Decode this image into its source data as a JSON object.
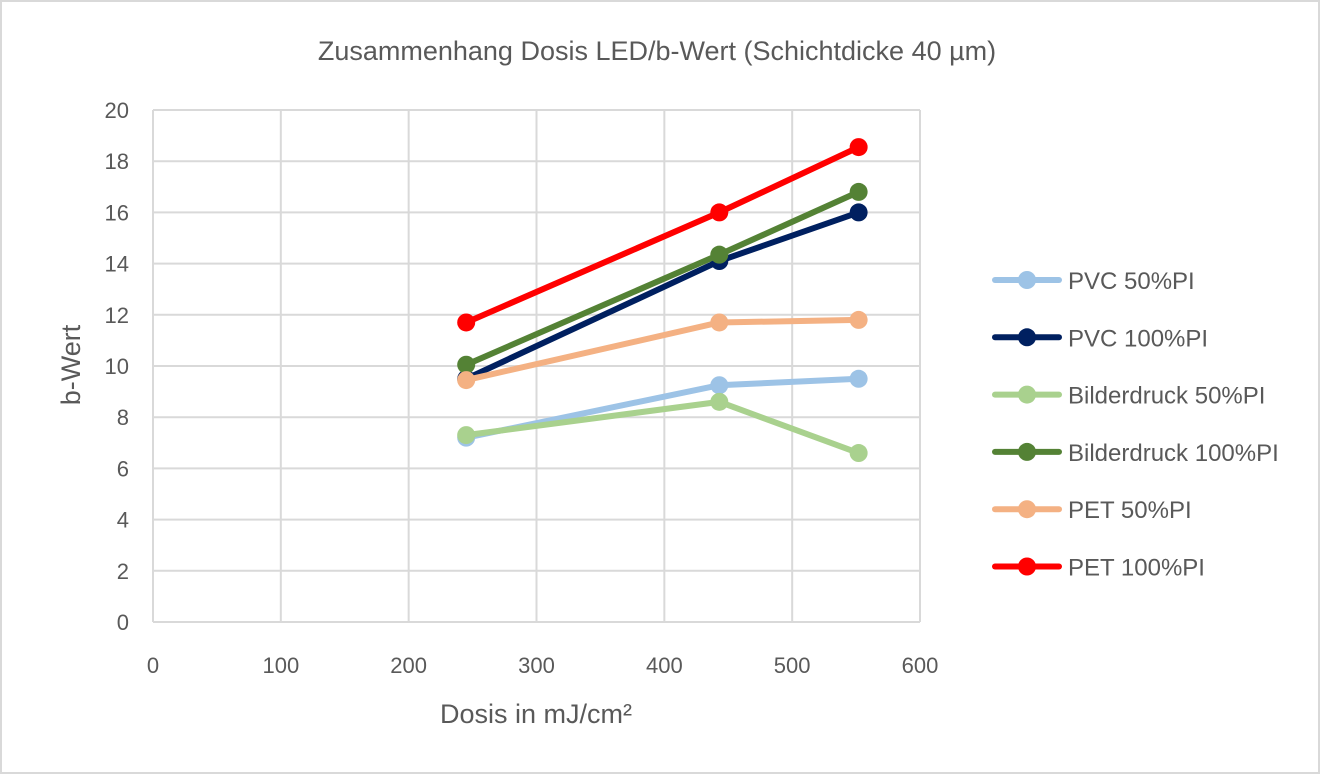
{
  "chart_data": {
    "type": "line",
    "title": "Zusammenhang Dosis LED/b-Wert (Schichtdicke 40 µm)",
    "xlabel": "Dosis in mJ/cm²",
    "ylabel": "b-Wert",
    "xlim": [
      0,
      600
    ],
    "ylim": [
      0,
      20
    ],
    "xticks": [
      0,
      100,
      200,
      300,
      400,
      500,
      600
    ],
    "yticks": [
      0,
      2,
      4,
      6,
      8,
      10,
      12,
      14,
      16,
      18,
      20
    ],
    "grid": true,
    "legend_position": "right",
    "series": [
      {
        "name": "PVC 50%PI",
        "color": "#9dc3e6",
        "points": [
          [
            245,
            7.2
          ],
          [
            443,
            9.25
          ],
          [
            552,
            9.5
          ]
        ]
      },
      {
        "name": "PVC 100%PI",
        "color": "#002060",
        "points": [
          [
            245,
            9.5
          ],
          [
            443,
            14.1
          ],
          [
            552,
            16.0
          ]
        ]
      },
      {
        "name": "Bilderdruck 50%PI",
        "color": "#a9d18e",
        "points": [
          [
            245,
            7.3
          ],
          [
            443,
            8.6
          ],
          [
            552,
            6.6
          ]
        ]
      },
      {
        "name": "Bilderdruck 100%PI",
        "color": "#548235",
        "points": [
          [
            245,
            10.05
          ],
          [
            443,
            14.35
          ],
          [
            552,
            16.8
          ]
        ]
      },
      {
        "name": "PET 50%PI",
        "color": "#f4b183",
        "points": [
          [
            245,
            9.45
          ],
          [
            443,
            11.7
          ],
          [
            552,
            11.8
          ]
        ]
      },
      {
        "name": "PET 100%PI",
        "color": "#ff0000",
        "points": [
          [
            245,
            11.7
          ],
          [
            443,
            16.0
          ],
          [
            552,
            18.55
          ]
        ]
      }
    ]
  }
}
